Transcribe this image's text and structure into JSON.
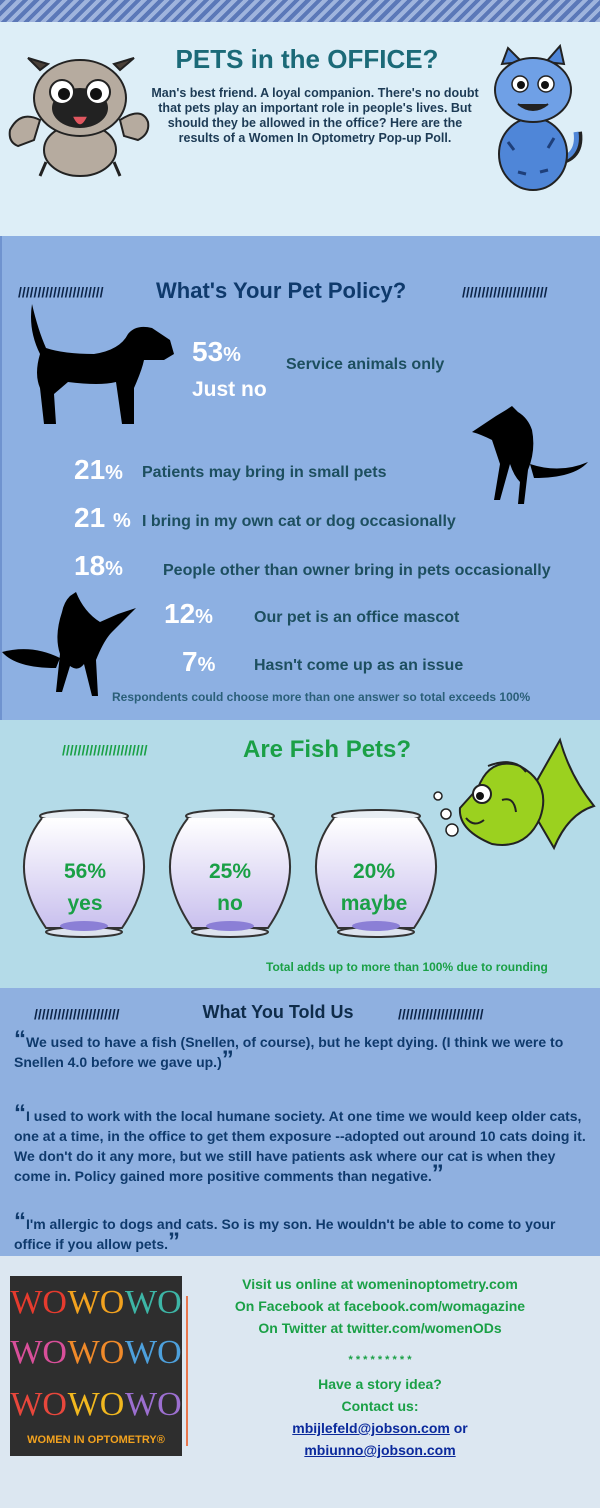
{
  "intro": {
    "title": "PETS in the OFFICE?",
    "text": "Man's best friend. A loyal companion. There's no doubt that pets play an important role in people's lives. But should they be allowed in the office? Here are the results of a Women In Optometry Pop-up Poll."
  },
  "policy": {
    "title": "What's Your Pet Policy?",
    "slashes_left": "//////////////////////",
    "slashes_right": "//////////////////////",
    "items": [
      {
        "pct": "53",
        "unit": "%",
        "label": "Service animals only",
        "value": 53
      },
      {
        "pct": "21",
        "unit": "%",
        "label": "Patients may bring in small pets",
        "value": 21
      },
      {
        "pct": "21 ",
        "unit": "%",
        "label": "I bring in my own cat or dog occasionally",
        "value": 21
      },
      {
        "pct": "18",
        "unit": "%",
        "label": "People other than owner bring in pets occasionally",
        "value": 18
      },
      {
        "pct": "12",
        "unit": "%",
        "label": "Our pet is an office mascot",
        "value": 12
      },
      {
        "pct": "7",
        "unit": "%",
        "label": "Hasn't come up as an issue",
        "value": 7
      }
    ],
    "just_no": "Just no",
    "note": "Respondents could choose more than one answer so total exceeds 100%"
  },
  "fish": {
    "title": "Are Fish Pets?",
    "slashes": "//////////////////////",
    "answers": [
      {
        "pct": "56%",
        "label": "yes",
        "value": 56
      },
      {
        "pct": "25%",
        "label": "no",
        "value": 25
      },
      {
        "pct": "20%",
        "label": "maybe",
        "value": 20
      }
    ],
    "note": "Total adds up to more than 100% due to rounding"
  },
  "told": {
    "title": "What You Told Us",
    "slashes_left": "//////////////////////",
    "slashes_right": "//////////////////////",
    "quotes": [
      "We used to have a fish (Snellen, of course), but he kept dying. (I think we were to Snellen 4.0 before we gave up.)",
      "I used to work with the local humane society. At one time we would keep older cats, one at a time, in the office to get them exposure --adopted out around 10 cats doing it. We don't do it any more, but we still have patients ask where our cat is when they come in. Policy gained more positive comments than negative.",
      "I'm allergic to dogs and cats. So is my son. He wouldn't be able to come to your office if you allow pets."
    ],
    "open_mark": "“",
    "close_mark": "”"
  },
  "logo": {
    "mark": "WO",
    "name": "WOMEN IN OPTOMETRY®",
    "colors": [
      "#e63b2e",
      "#f2a21f",
      "#3db5a6",
      "#d94f9a",
      "#f08a2a",
      "#4da0dc",
      "#e8473c",
      "#f2b81f",
      "#9c6fd0"
    ]
  },
  "footer": {
    "line1": "Visit us online at womeninoptometry.com",
    "line2": "On Facebook at facebook.com/womagazine",
    "line3": "On Twitter at twitter.com/womenODs",
    "stars": "* * * * * * * * *",
    "story": "Have a story idea?",
    "contact": "Contact us:",
    "email1": "mbijlefeld@jobson.com",
    "or": " or",
    "email2": "mbiunno@jobson.com"
  },
  "colors": {
    "green": "#1aa046",
    "teal": "#1b6a78",
    "navy": "#0f3a6c",
    "fish_body": "#9bd11f"
  }
}
